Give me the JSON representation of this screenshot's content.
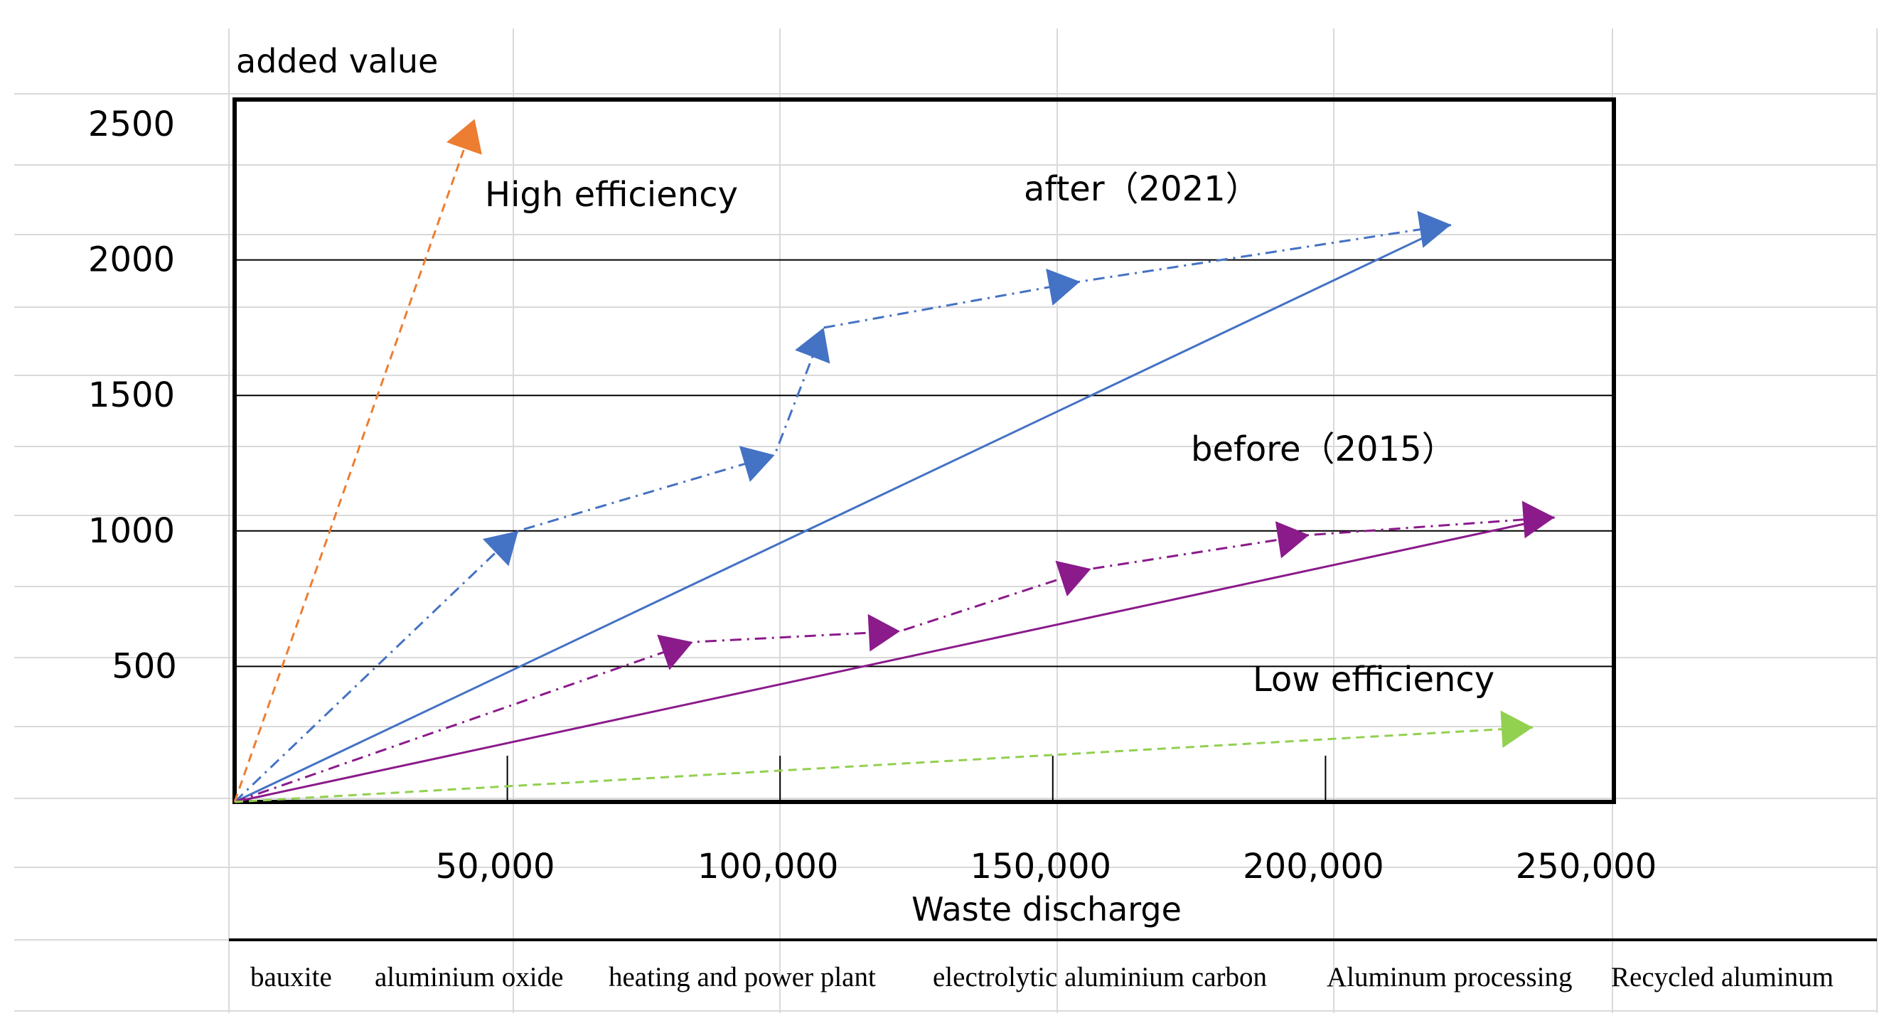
{
  "chart_data": {
    "type": "line",
    "ylabel": "added value",
    "xlabel": "Waste discharge",
    "xlim": [
      0,
      250000
    ],
    "ylim": [
      0,
      2500
    ],
    "y_ticks": [
      {
        "value": 500,
        "label": "500"
      },
      {
        "value": 1000,
        "label": "1000"
      },
      {
        "value": 1500,
        "label": "1500"
      },
      {
        "value": 2000,
        "label": "2000"
      },
      {
        "value": 2500,
        "label": "2500"
      }
    ],
    "x_ticks": [
      {
        "value": 50000,
        "label": "50,000"
      },
      {
        "value": 100000,
        "label": "100,000"
      },
      {
        "value": 150000,
        "label": "150,000"
      },
      {
        "value": 200000,
        "label": "200,000"
      },
      {
        "value": 250000,
        "label": "250,000"
      }
    ],
    "stages": [
      "bauxite",
      "aluminium oxide",
      "heating and power plant",
      "electrolytic aluminium carbon",
      "Aluminum processing",
      "Recycled aluminum"
    ],
    "annotations": {
      "high": "High efficiency",
      "low": "Low efficiency",
      "after": "after（2021）",
      "before": "before（2015）"
    },
    "series": [
      {
        "name": "after (2021) path",
        "color": "#4472C4",
        "style": "dash-dot",
        "points": [
          [
            0,
            0
          ],
          [
            52000,
            1000
          ],
          [
            99000,
            1280
          ],
          [
            108000,
            1750
          ],
          [
            155000,
            1920
          ],
          [
            223000,
            2130
          ]
        ]
      },
      {
        "name": "after (2021) trend",
        "color": "#4472C4",
        "style": "solid",
        "points": [
          [
            0,
            0
          ],
          [
            223000,
            2130
          ]
        ]
      },
      {
        "name": "before (2015) path",
        "color": "#8B1A8B",
        "style": "dash-dot",
        "points": [
          [
            0,
            0
          ],
          [
            84000,
            590
          ],
          [
            122000,
            630
          ],
          [
            157000,
            860
          ],
          [
            197000,
            985
          ],
          [
            242000,
            1050
          ]
        ]
      },
      {
        "name": "before (2015) trend",
        "color": "#8B1A8B",
        "style": "solid",
        "points": [
          [
            0,
            0
          ],
          [
            242000,
            1050
          ]
        ]
      },
      {
        "name": "High efficiency",
        "color": "#ED7D31",
        "style": "dashed",
        "points": [
          [
            0,
            0
          ],
          [
            44000,
            2520
          ]
        ]
      },
      {
        "name": "Low efficiency",
        "color": "#92D050",
        "style": "dashed",
        "points": [
          [
            0,
            0
          ],
          [
            238000,
            275
          ]
        ]
      }
    ]
  }
}
